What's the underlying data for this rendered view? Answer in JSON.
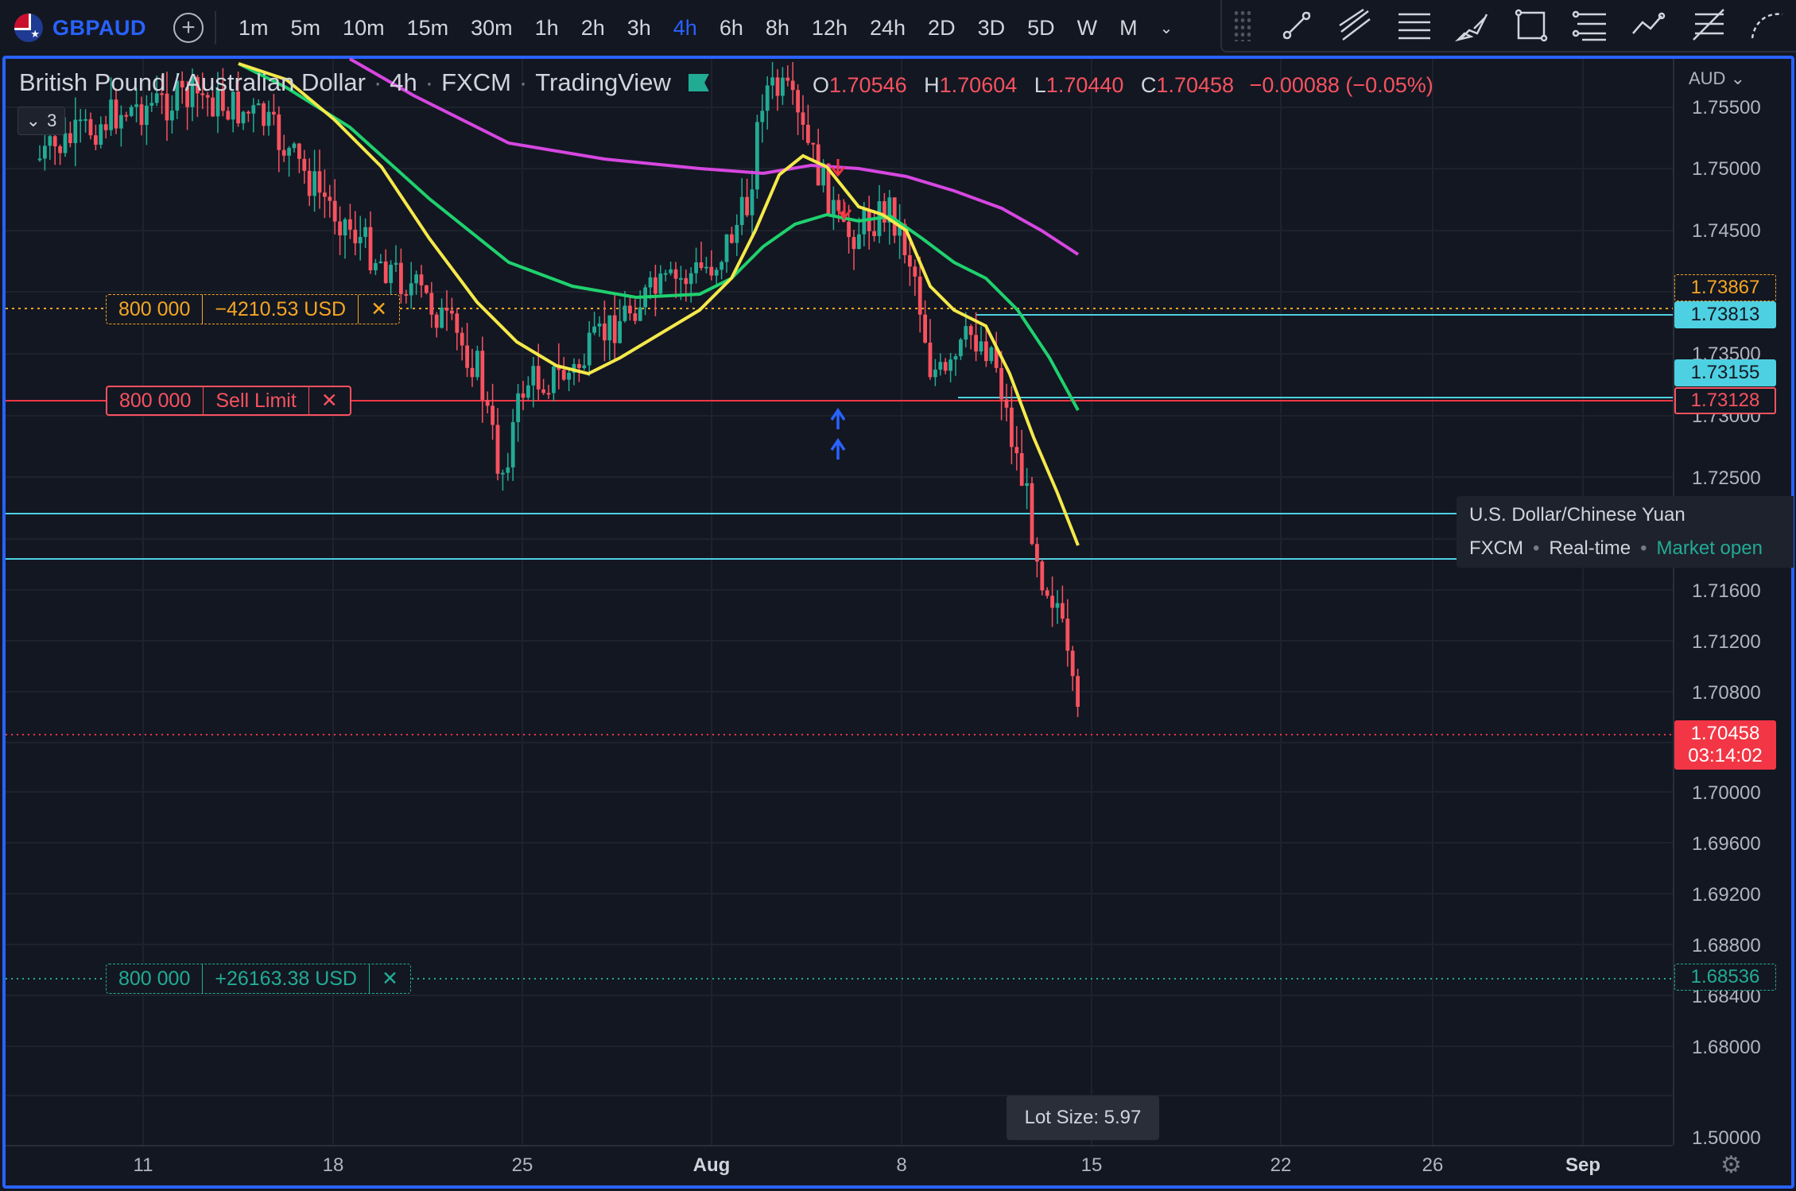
{
  "toolbar": {
    "symbol": "GBPAUD",
    "intervals": [
      "1m",
      "5m",
      "10m",
      "15m",
      "30m",
      "1h",
      "2h",
      "3h",
      "4h",
      "6h",
      "8h",
      "12h",
      "24h",
      "2D",
      "3D",
      "5D",
      "W",
      "M"
    ],
    "active_interval": "4h",
    "drawing_tools": [
      "trend-line-icon",
      "parallel-channel-icon",
      "horizontal-lines-icon",
      "brush-icon",
      "rectangle-icon",
      "fib-levels-icon",
      "path-icon",
      "gann-icon",
      "more-tools-icon"
    ]
  },
  "legend": {
    "name": "British Pound / Australian Dollar",
    "interval": "4h",
    "exchange": "FXCM",
    "provider": "TradingView",
    "ohlc": {
      "o_label": "O",
      "o": "1.70546",
      "h_label": "H",
      "h": "1.70604",
      "l_label": "L",
      "l": "1.70440",
      "c_label": "C",
      "c": "1.70458",
      "change": "−0.00088 (−0.05%)"
    },
    "collapse_count": "3"
  },
  "orders": {
    "take_profit": {
      "qty": "800 000",
      "pnl": "−4210.53 USD",
      "close": "✕"
    },
    "sell_limit": {
      "qty": "800 000",
      "type": "Sell Limit",
      "close": "✕"
    },
    "stop_loss": {
      "qty": "800 000",
      "pnl": "+26163.38 USD",
      "close": "✕"
    }
  },
  "price_axis": {
    "currency": "AUD",
    "ticks": [
      "1.75500",
      "1.75000",
      "1.74500",
      "1.73500",
      "1.73000",
      "1.72500",
      "1.71600",
      "1.71200",
      "1.70800",
      "1.70000",
      "1.69600",
      "1.69200",
      "1.68800",
      "1.68400",
      "1.68000",
      "1.50000"
    ],
    "labels": {
      "tp": "1.73867",
      "cyan1": "1.73813",
      "cyan2": "1.73155",
      "sell": "1.73128",
      "last": "1.70458",
      "countdown": "03:14:02",
      "sl": "1.68536"
    }
  },
  "time_axis": [
    "11",
    "18",
    "25",
    "Aug",
    "8",
    "15",
    "22",
    "26",
    "Sep"
  ],
  "symbol_tooltip": {
    "name": "U.S. Dollar/Chinese Yuan",
    "exchange": "FXCM",
    "feed": "Real-time",
    "status": "Market open"
  },
  "lot_tooltip": "Lot Size: 5.97",
  "colors": {
    "background": "#131722",
    "accent": "#2962ff",
    "up": "#22ab94",
    "down": "#f7525f",
    "ma_fast": "#f5e94a",
    "ma_mid": "#1fd16e",
    "ma_slow": "#d647e0",
    "cyan_line": "#4dd0e1"
  },
  "chart_data": {
    "type": "candlestick",
    "symbol": "GBPAUD",
    "interval": "4h",
    "x": [
      "11",
      "18",
      "25",
      "Aug",
      "8",
      "15",
      "22",
      "26",
      "Sep"
    ],
    "moving_averages": [
      {
        "color": "#f5e94a"
      },
      {
        "color": "#1fd16e"
      },
      {
        "color": "#d647e0"
      }
    ],
    "horizontal_lines": [
      1.73867,
      1.73813,
      1.73155,
      1.73128,
      1.70458,
      1.68536
    ],
    "last_price": 1.70458,
    "ohlc_last": {
      "open": 1.70546,
      "high": 1.70604,
      "low": 1.7044,
      "close": 1.70458
    }
  }
}
